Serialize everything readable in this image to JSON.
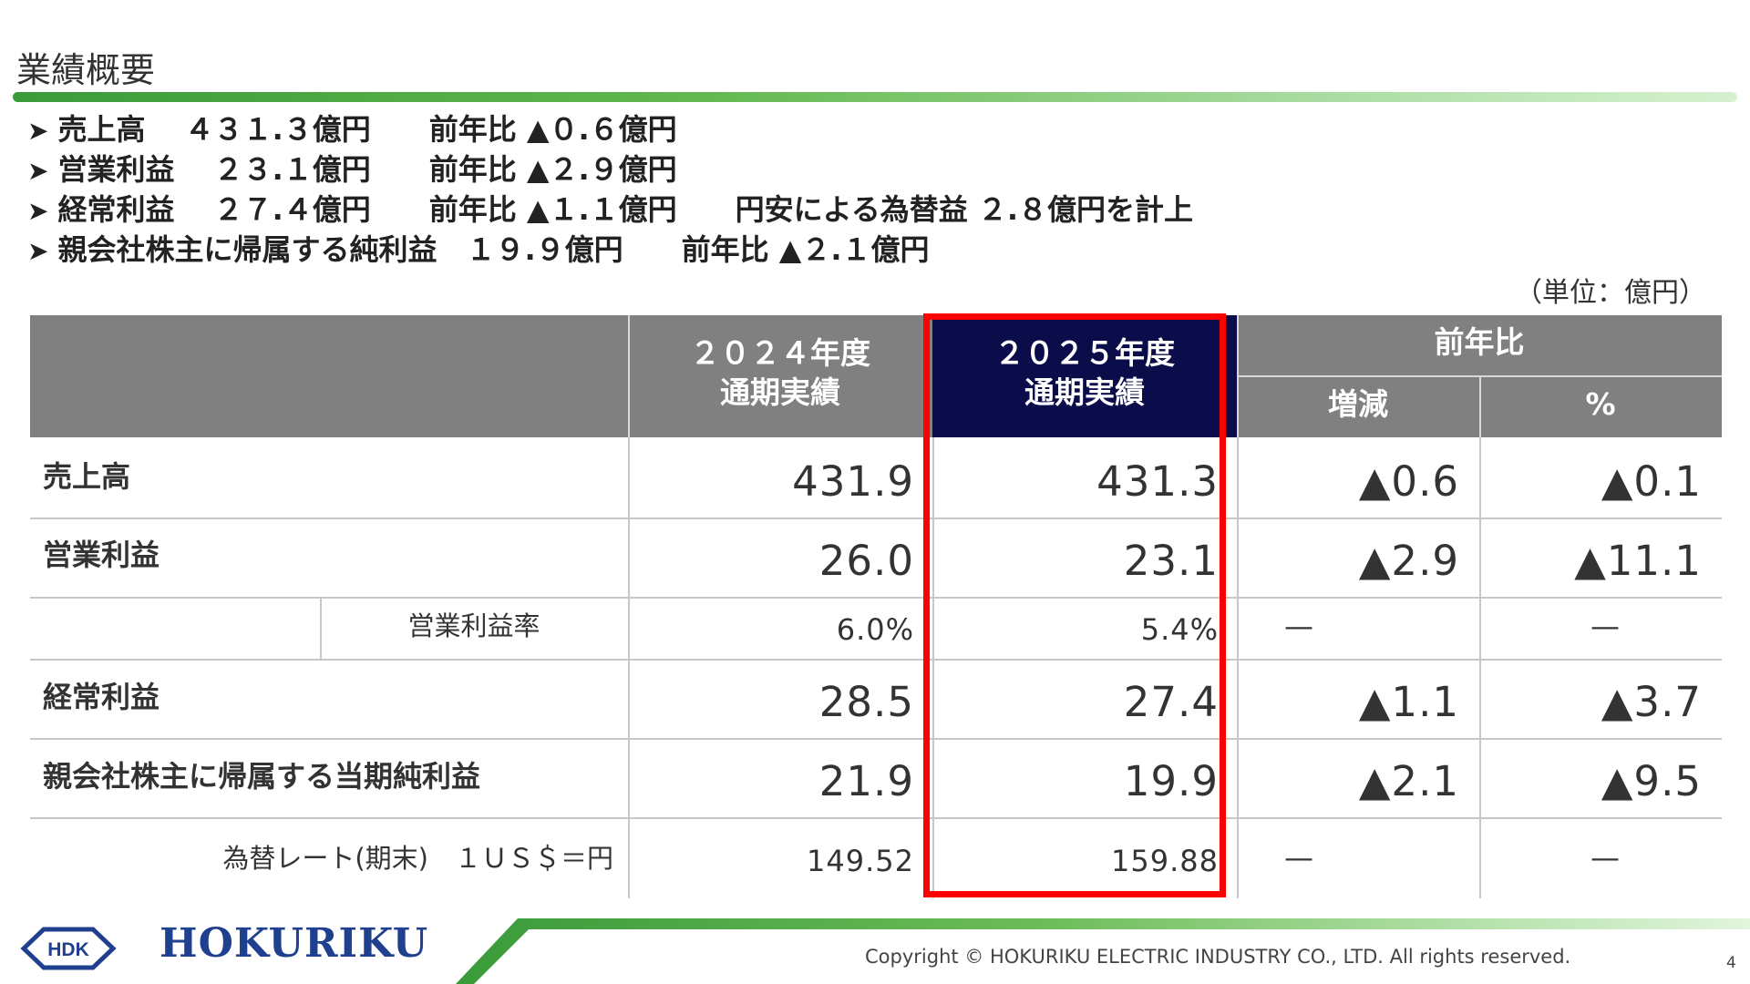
{
  "page": {
    "title": "業績概要",
    "page_number": "4",
    "unit_label": "（単位：億円）"
  },
  "summary": [
    "売上高　 ４３１.３億円　　前年比 ▲０.６億円",
    "営業利益　 ２３.１億円　　前年比 ▲２.９億円",
    "経常利益　 ２７.４億円　　前年比 ▲１.１億円　　円安による為替益 ２.８億円を計上",
    "親会社株主に帰属する純利益　１９.９億円　　前年比 ▲２.１億円"
  ],
  "summary_bullet": "➤",
  "table": {
    "headers": {
      "fy2024_line1": "２０２４年度",
      "fy2024_line2": "通期実績",
      "fy2025_line1": "２０２５年度",
      "fy2025_line2": "通期実績",
      "yoy": "前年比",
      "change": "増減",
      "percent": "%"
    },
    "rows": [
      {
        "label": "売上高",
        "fy2024": "431.9",
        "fy2025": "431.3",
        "change": "▲0.6",
        "percent": "▲0.1"
      },
      {
        "label": "営業利益",
        "fy2024": "26.0",
        "fy2025": "23.1",
        "change": "▲2.9",
        "percent": "▲11.1"
      },
      {
        "label": "営業利益率",
        "fy2024": "6.0%",
        "fy2025": "5.4%",
        "change": "—",
        "percent": "—"
      },
      {
        "label": "経常利益",
        "fy2024": "28.5",
        "fy2025": "27.4",
        "change": "▲1.1",
        "percent": "▲3.7"
      },
      {
        "label": "親会社株主に帰属する当期純利益",
        "fy2024": "21.9",
        "fy2025": "19.9",
        "change": "▲2.1",
        "percent": "▲9.5"
      },
      {
        "label": "為替レート(期末)　１ＵＳ＄＝円",
        "fy2024": "149.52",
        "fy2025": "159.88",
        "change": "—",
        "percent": "—"
      }
    ]
  },
  "footer": {
    "logo_mark": "HDK",
    "logo_text": "HOKURIKU",
    "copyright": "Copyright © HOKURIKU ELECTRIC INDUSTRY CO., LTD. All rights reserved."
  },
  "colors": {
    "accent_green": "#4aa844",
    "header_gray": "#808080",
    "highlight_navy": "#0b0c4a",
    "highlight_red": "#ff0000",
    "logo_blue": "#1f3f8f"
  }
}
